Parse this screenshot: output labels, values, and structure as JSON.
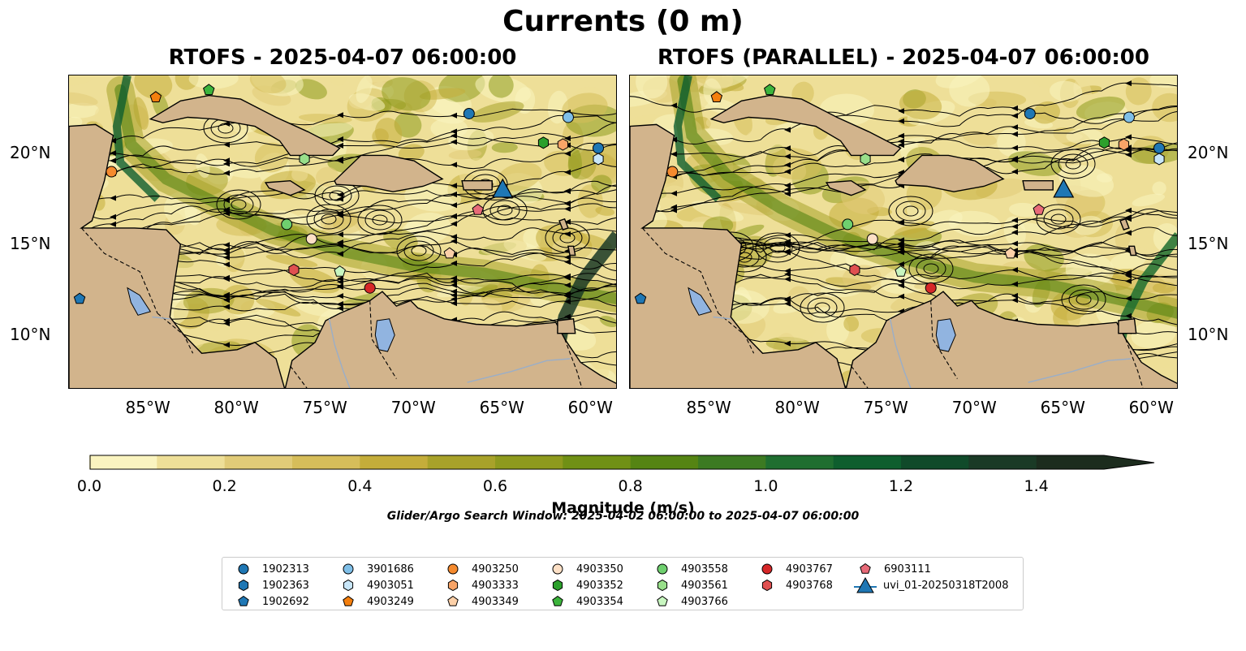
{
  "figure": {
    "title": "Currents (0 m)",
    "panels": [
      {
        "title": "RTOFS - 2025-04-07 06:00:00"
      },
      {
        "title": "RTOFS (PARALLEL) - 2025-04-07 06:00:00"
      }
    ],
    "lon_ticks": [
      "85°W",
      "80°W",
      "75°W",
      "70°W",
      "65°W",
      "60°W"
    ],
    "lat_ticks": [
      "20°N",
      "15°N",
      "10°N"
    ],
    "extent": {
      "lon": [
        -89.5,
        -58.5
      ],
      "lat": [
        7.0,
        24.3
      ]
    },
    "colorbar": {
      "label": "Magnitude (m/s)",
      "ticks": [
        "0.0",
        "0.2",
        "0.4",
        "0.6",
        "0.8",
        "1.0",
        "1.2",
        "1.4"
      ],
      "range": [
        0.0,
        1.5
      ],
      "extend": "max",
      "colors": [
        "#faf4c0",
        "#eedf98",
        "#e1cb78",
        "#d6bd5a",
        "#c4ad3a",
        "#a8a22a",
        "#8e9a1e",
        "#709015",
        "#558413",
        "#3c7a22",
        "#1f6e30",
        "#0e5e2e",
        "#104a2a",
        "#1a3a26",
        "#1c2c1e"
      ]
    },
    "search_window": "Glider/Argo Search Window: 2025-04-02 06:00:00 to 2025-04-07 06:00:00",
    "land_color": "#d2b48c",
    "lake_color": "#91b4e0",
    "glider": {
      "id": "uvi_01-20250318T2008",
      "lon": -65.0,
      "lat": 18.0,
      "color": "#1f77b4"
    },
    "floats": [
      {
        "id": "1902313",
        "marker": "circle",
        "color": "#1f77b4",
        "lon": -59.6,
        "lat": 20.3
      },
      {
        "id": "1902363",
        "marker": "hexagon",
        "color": "#1f77b4",
        "lon": null,
        "lat": null
      },
      {
        "id": "1902692",
        "marker": "pentagon",
        "color": "#1f77b4",
        "lon": -88.9,
        "lat": 12.0
      },
      {
        "id": "3901686",
        "marker": "circle",
        "color": "#7fbfe8",
        "lon": -61.3,
        "lat": 22.0
      },
      {
        "id": "4903051",
        "marker": "hexagon",
        "color": "#c8e6f8",
        "lon": -59.6,
        "lat": 19.7
      },
      {
        "id": "4903249",
        "marker": "pentagon",
        "color": "#f47f0e",
        "lon": -84.6,
        "lat": 23.1
      },
      {
        "id": "4903250",
        "marker": "circle",
        "color": "#f58a2e",
        "lon": -87.1,
        "lat": 19.0
      },
      {
        "id": "4903333",
        "marker": "hexagon",
        "color": "#f8a467",
        "lon": -61.6,
        "lat": 20.5
      },
      {
        "id": "4903349",
        "marker": "pentagon",
        "color": "#fcd0a8",
        "lon": -68.0,
        "lat": 14.5
      },
      {
        "id": "4903350",
        "marker": "circle",
        "color": "#fde0c6",
        "lon": -75.8,
        "lat": 15.3
      },
      {
        "id": "4903352",
        "marker": "hexagon",
        "color": "#2ca02c",
        "lon": -62.7,
        "lat": 20.6
      },
      {
        "id": "4903354",
        "marker": "pentagon",
        "color": "#3cb43c",
        "lon": -81.6,
        "lat": 23.5
      },
      {
        "id": "4903558",
        "marker": "circle",
        "color": "#6fd06f",
        "lon": -77.2,
        "lat": 16.1
      },
      {
        "id": "4903561",
        "marker": "hexagon",
        "color": "#98df8a",
        "lon": -76.2,
        "lat": 19.7
      },
      {
        "id": "4903766",
        "marker": "pentagon",
        "color": "#c8f6c0",
        "lon": -74.2,
        "lat": 13.5
      },
      {
        "id": "4903767",
        "marker": "circle",
        "color": "#d62728",
        "lon": -72.5,
        "lat": 12.6
      },
      {
        "id": "4903768",
        "marker": "hexagon",
        "color": "#e05050",
        "lon": -76.8,
        "lat": 13.6
      },
      {
        "id": "6903111",
        "marker": "pentagon",
        "color": "#e86a78",
        "lon": -66.4,
        "lat": 16.9
      },
      {
        "id": "",
        "marker": "circle",
        "color": "#1f77b4",
        "lon": -66.9,
        "lat": 22.2
      }
    ],
    "legend": [
      "1902313",
      "1902363",
      "1902692",
      "3901686",
      "4903051",
      "4903249",
      "4903250",
      "4903333",
      "4903349",
      "4903350",
      "4903352",
      "4903354",
      "4903558",
      "4903561",
      "4903766",
      "4903767",
      "4903768",
      "",
      "6903111",
      "uvi_01-20250318T2008",
      ""
    ]
  }
}
